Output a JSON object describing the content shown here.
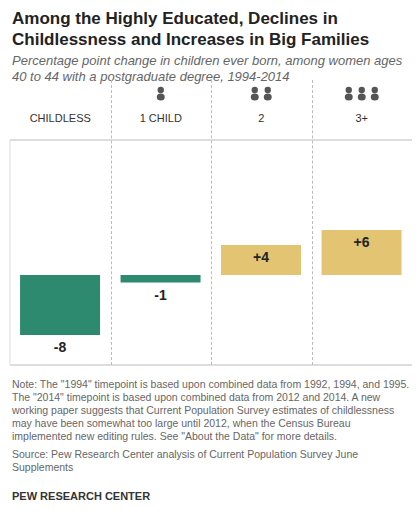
{
  "chart_data": {
    "type": "bar",
    "title": "Among the Highly Educated, Declines in Childlessness and Increases in Big Families",
    "subtitle": "Percentage point change in children ever born, among women ages 40 to 44 with a postgraduate degree, 1994-2014",
    "categories": [
      "CHILDLESS",
      "1 CHILD",
      "2",
      "3+"
    ],
    "values": [
      -8,
      -1,
      4,
      6
    ],
    "value_labels": [
      "-8",
      "-1",
      "+4",
      "+6"
    ],
    "colors": [
      "#2e8a6e",
      "#2e8a6e",
      "#e3c472",
      "#e3c472"
    ],
    "ylim": [
      -12,
      18
    ],
    "yticks": [
      0
    ],
    "grid": true,
    "data_labels": true,
    "tick_labels": "x",
    "note": "Note: The \"1994\" timepoint is based upon combined data from 1992, 1994, and 1995. The \"2014\" timepoint is based upon combined data from 2012 and 2014. A new working paper suggests that Current Population Survey estimates of childlessness may have been somewhat too large until 2012, when the Census Bureau implemented new editing rules. See \"About the Data\" for more details.",
    "source": "Source: Pew Research Center analysis of Current Population Survey June Supplements",
    "credit": "PEW RESEARCH CENTER"
  }
}
